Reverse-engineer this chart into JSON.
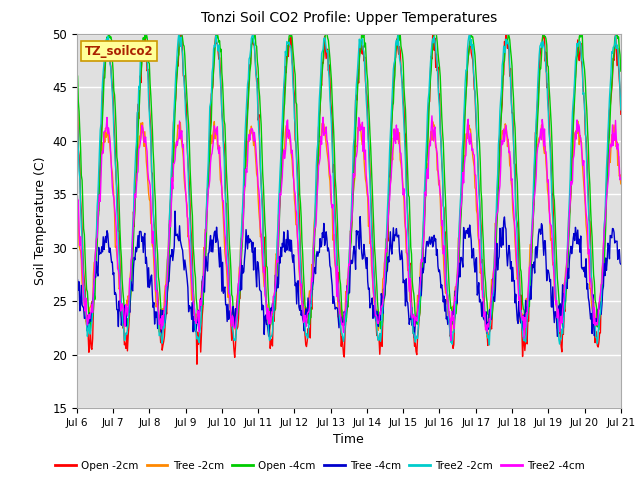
{
  "title": "Tonzi Soil CO2 Profile: Upper Temperatures",
  "xlabel": "Time",
  "ylabel": "Soil Temperature (C)",
  "ylim": [
    15,
    50
  ],
  "yticks": [
    15,
    20,
    25,
    30,
    35,
    40,
    45,
    50
  ],
  "plot_bg_color": "#e0e0e0",
  "grid_color": "#cccccc",
  "series": [
    {
      "label": "Open -2cm",
      "color": "#ff0000"
    },
    {
      "label": "Tree -2cm",
      "color": "#ff8800"
    },
    {
      "label": "Open -4cm",
      "color": "#00cc00"
    },
    {
      "label": "Tree -4cm",
      "color": "#0000cc"
    },
    {
      "label": "Tree2 -2cm",
      "color": "#00cccc"
    },
    {
      "label": "Tree2 -4cm",
      "color": "#ff00ff"
    }
  ],
  "x_tick_labels": [
    "Jul 6",
    "Jul 7",
    "Jul 8",
    "Jul 9",
    "Jul 10",
    "Jul 11",
    "Jul 12",
    "Jul 13",
    "Jul 14",
    "Jul 15",
    "Jul 16",
    "Jul 17",
    "Jul 18",
    "Jul 19",
    "Jul 20",
    "Jul 21"
  ],
  "label_box_color": "#ffff99",
  "label_box_text": "TZ_soilco2",
  "series_params": [
    {
      "mean": 35.0,
      "amp": 14.0,
      "phase": 0.0,
      "noise": 0.8,
      "seed": 10
    },
    {
      "mean": 32.0,
      "amp": 9.0,
      "phase": 0.3,
      "noise": 0.6,
      "seed": 20
    },
    {
      "mean": 36.5,
      "amp": 13.5,
      "phase": -0.2,
      "noise": 0.4,
      "seed": 30
    },
    {
      "mean": 27.0,
      "amp": 4.0,
      "phase": 0.5,
      "noise": 0.8,
      "seed": 40
    },
    {
      "mean": 35.5,
      "amp": 14.0,
      "phase": 0.1,
      "noise": 0.4,
      "seed": 50
    },
    {
      "mean": 32.0,
      "amp": 9.0,
      "phase": 0.2,
      "noise": 0.6,
      "seed": 60
    }
  ]
}
